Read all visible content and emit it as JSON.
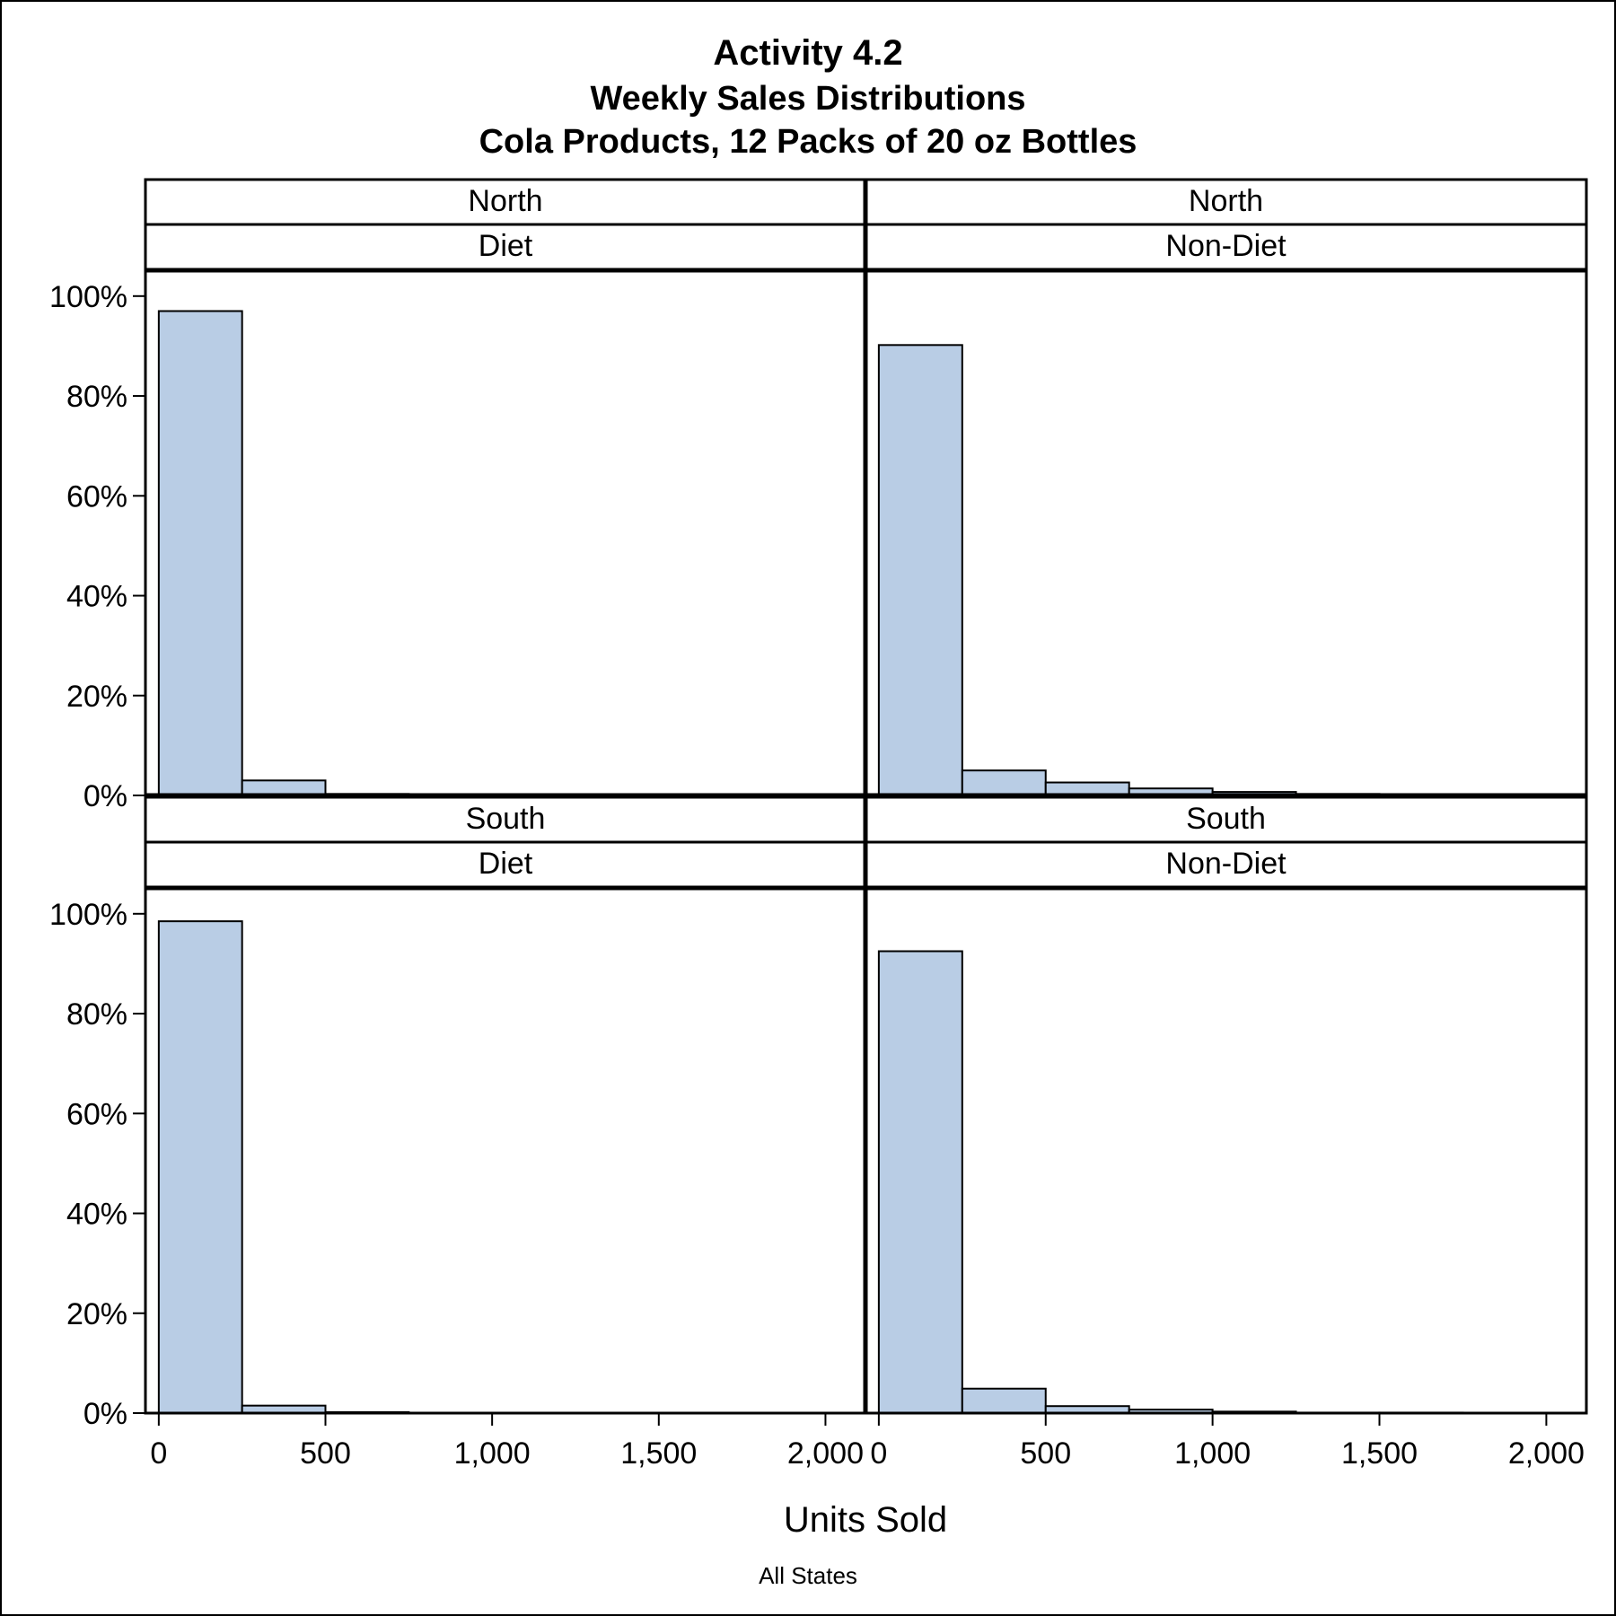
{
  "titles": {
    "title": "Activity 4.2",
    "subtitle1": "Weekly Sales Distributions",
    "subtitle2": "Cola Products, 12 Packs of 20 oz Bottles"
  },
  "footnote": "All States",
  "colors": {
    "bar_fill": "#b9cde5",
    "bar_stroke": "#000000",
    "frame": "#000000"
  },
  "chart_data": {
    "type": "bar",
    "subtype": "histogram-panel",
    "xlabel": "Units Sold",
    "ylabel": "",
    "xlim": [
      -40,
      2120
    ],
    "ylim": [
      0,
      105
    ],
    "x_ticks": [
      0,
      500,
      1000,
      1500,
      2000
    ],
    "x_tick_labels": [
      "0",
      "500",
      "1,000",
      "1,500",
      "2,000"
    ],
    "y_ticks": [
      0,
      20,
      40,
      60,
      80,
      100
    ],
    "y_tick_labels": [
      "0%",
      "20%",
      "40%",
      "60%",
      "80%",
      "100%"
    ],
    "bin_edges": [
      0,
      250,
      500,
      750,
      1000,
      1250,
      1500,
      1750,
      2000
    ],
    "grid": false,
    "panels": [
      {
        "row": 0,
        "col": 0,
        "region": "North",
        "type": "Diet",
        "values": [
          97.0,
          3.0,
          0.3,
          0.0,
          0.0,
          0.0,
          0.0,
          0.0
        ]
      },
      {
        "row": 0,
        "col": 1,
        "region": "North",
        "type": "Non-Diet",
        "values": [
          90.2,
          5.0,
          2.6,
          1.4,
          0.7,
          0.3,
          0.2,
          0.1
        ]
      },
      {
        "row": 1,
        "col": 0,
        "region": "South",
        "type": "Diet",
        "values": [
          98.5,
          1.5,
          0.2,
          0.0,
          0.0,
          0.0,
          0.0,
          0.0
        ]
      },
      {
        "row": 1,
        "col": 1,
        "region": "South",
        "type": "Non-Diet",
        "values": [
          92.5,
          4.9,
          1.4,
          0.7,
          0.3,
          0.1,
          0.1,
          0.0
        ]
      }
    ]
  }
}
